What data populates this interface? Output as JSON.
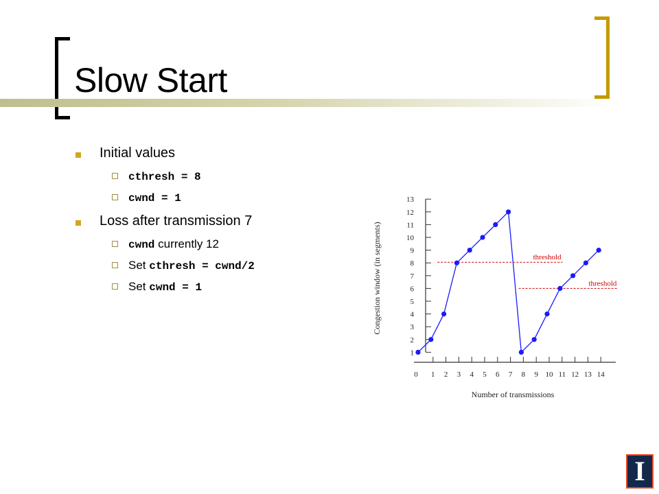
{
  "slide": {
    "title": "Slow Start",
    "bullets": [
      {
        "text": "Initial values",
        "sub": [
          {
            "code": "cthresh = 8",
            "prefix": "",
            "suffix": ""
          },
          {
            "code": "cwnd = 1",
            "prefix": "",
            "suffix": ""
          }
        ]
      },
      {
        "text": "Loss after transmission 7",
        "sub": [
          {
            "code": "cwnd",
            "prefix": "",
            "suffix": " currently 12"
          },
          {
            "code": "cthresh = cwnd/2",
            "prefix": "Set ",
            "suffix": ""
          },
          {
            "code": "cwnd = 1",
            "prefix": "Set ",
            "suffix": ""
          }
        ]
      }
    ]
  },
  "colors": {
    "bracket_left": "#000000",
    "bracket_right": "#c49a00",
    "bullet": "#d4a520",
    "series": "#1a1aff",
    "threshold": "#cc0000",
    "logo_bg": "#13294b",
    "logo_border": "#e84a27"
  },
  "logo": {
    "icon": "university-block-i-icon",
    "letter": "I"
  },
  "chart_data": {
    "type": "line",
    "xlabel": "Number of transmissions",
    "ylabel": "Congestion window (in segments)",
    "xlim": [
      0,
      15
    ],
    "ylim": [
      0,
      13
    ],
    "x_ticks": [
      0,
      1,
      2,
      3,
      4,
      5,
      6,
      7,
      8,
      9,
      10,
      11,
      12,
      13,
      14
    ],
    "y_ticks": [
      1,
      2,
      3,
      4,
      5,
      6,
      7,
      8,
      9,
      10,
      11,
      12,
      13
    ],
    "series": [
      {
        "x": [
          0,
          1,
          2,
          3,
          4,
          5,
          6,
          7,
          8,
          9,
          10,
          11,
          12,
          13,
          14
        ],
        "values": [
          1,
          2,
          4,
          8,
          9,
          10,
          11,
          12,
          1,
          2,
          4,
          6,
          7,
          8,
          9
        ]
      }
    ],
    "thresholds": [
      {
        "label": "threshold",
        "y": 8,
        "x_start": 1.5,
        "x_end": 11.2
      },
      {
        "label": "threshold",
        "y": 6,
        "x_start": 7.8,
        "x_end": 15.5
      }
    ]
  }
}
